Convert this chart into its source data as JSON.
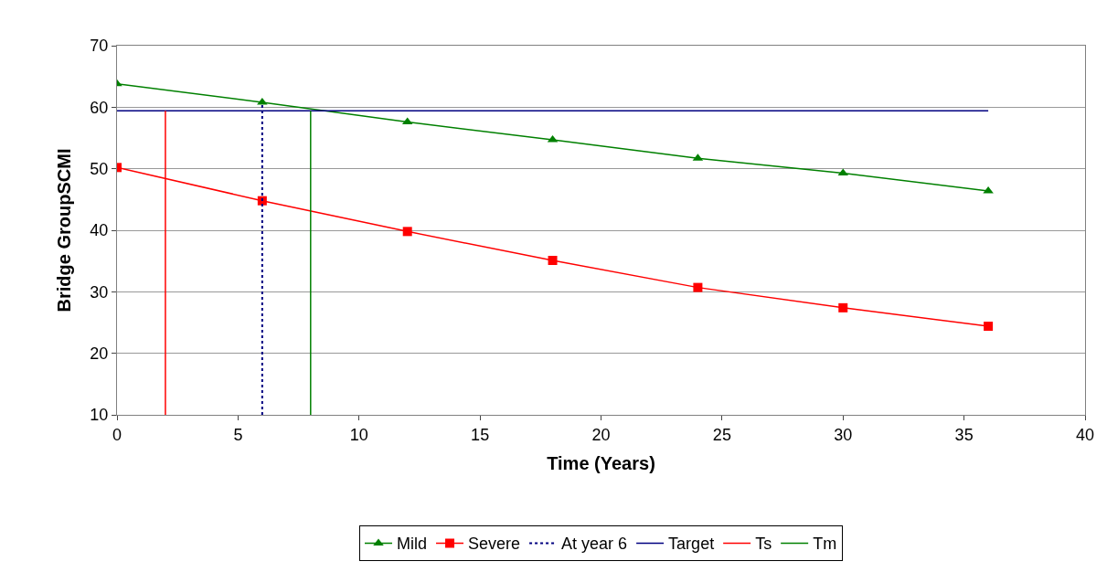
{
  "chart_data": {
    "type": "line",
    "xlabel": "Time (Years)",
    "ylabel": "Bridge GroupSCMI",
    "xlim": [
      0,
      40
    ],
    "xticks": [
      0,
      5,
      10,
      15,
      20,
      25,
      30,
      35,
      40
    ],
    "ylim": [
      10,
      70
    ],
    "yticks": [
      10,
      20,
      30,
      40,
      50,
      60,
      70
    ],
    "grid": "y",
    "legend": "bottom",
    "series": [
      {
        "name": "Mild",
        "color": "#008000",
        "marker": "triangle",
        "line_style": "solid",
        "x": [
          0,
          6,
          12,
          18,
          24,
          30,
          36
        ],
        "values": [
          63.8,
          60.8,
          57.6,
          54.7,
          51.7,
          49.3,
          46.4
        ]
      },
      {
        "name": "Severe",
        "color": "#ff0000",
        "marker": "square",
        "line_style": "solid",
        "x": [
          0,
          6,
          12,
          18,
          24,
          30,
          36
        ],
        "values": [
          50.2,
          44.8,
          39.8,
          35.1,
          30.7,
          27.4,
          24.4
        ]
      },
      {
        "name": "At year 6",
        "color": "#000080",
        "marker": "none",
        "line_style": "dotted",
        "x": [
          6,
          6
        ],
        "values": [
          10,
          60.8
        ]
      },
      {
        "name": "Target",
        "color": "#000080",
        "marker": "none",
        "line_style": "solid",
        "x": [
          0,
          36
        ],
        "values": [
          59.4,
          59.4
        ]
      },
      {
        "name": "Ts",
        "color": "#ff0000",
        "marker": "none",
        "line_style": "solid",
        "x": [
          2,
          2
        ],
        "values": [
          10,
          59.4
        ]
      },
      {
        "name": "Tm",
        "color": "#008000",
        "marker": "none",
        "line_style": "solid",
        "x": [
          8,
          8
        ],
        "values": [
          10,
          59.4
        ]
      }
    ]
  }
}
